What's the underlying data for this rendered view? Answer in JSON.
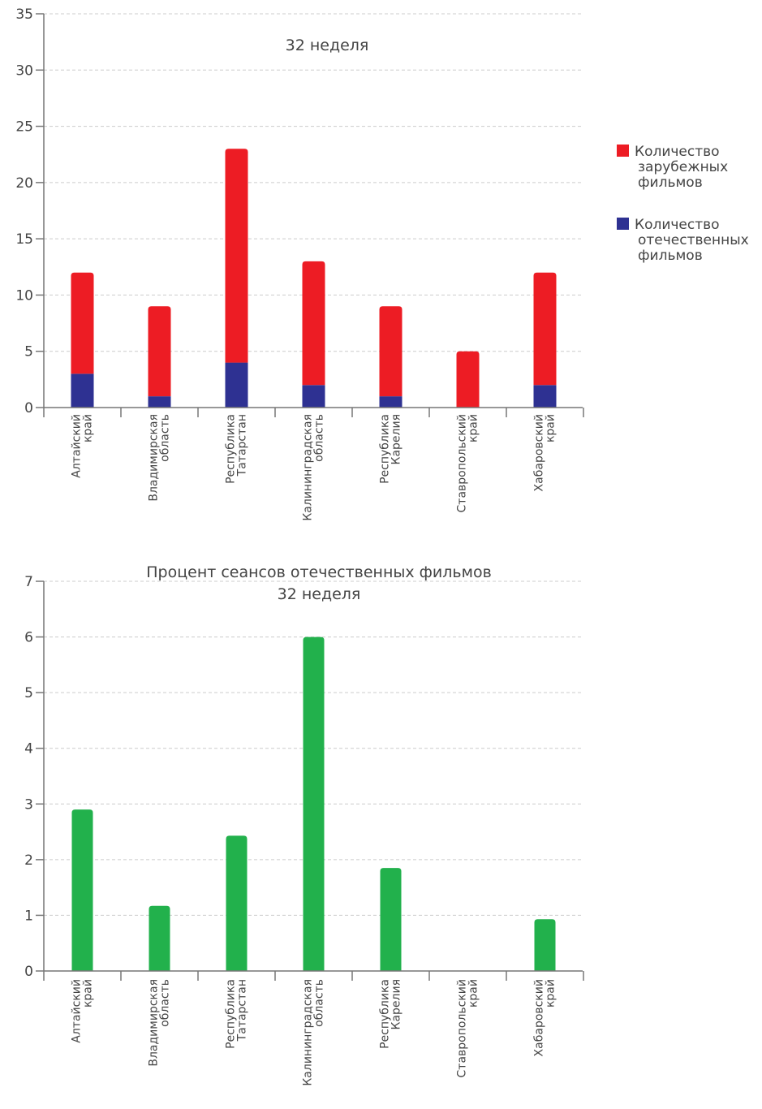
{
  "chart_data": [
    {
      "type": "bar",
      "stacked": true,
      "title": "32 неделя",
      "categories": [
        [
          "Алтайский",
          "край"
        ],
        [
          "Владимирская",
          "область"
        ],
        [
          "Республика",
          "Татарстан"
        ],
        [
          "Калининградская",
          "область"
        ],
        [
          "Республика",
          "Карелия"
        ],
        [
          "Ставропольский",
          "край"
        ],
        [
          "Хабаровский",
          "край"
        ]
      ],
      "series": [
        {
          "name": [
            "Количество",
            "отечественных",
            "фильмов"
          ],
          "color": "#2e3192",
          "values": [
            3,
            1,
            4,
            2,
            1,
            0,
            2
          ]
        },
        {
          "name": [
            "Количество",
            "зарубежных",
            "фильмов"
          ],
          "color": "#ed1c24",
          "values": [
            9,
            8,
            19,
            11,
            8,
            5,
            10
          ]
        }
      ],
      "ylim": [
        0,
        35
      ],
      "yticks": [
        "0",
        "5",
        "10",
        "15",
        "20",
        "25",
        "30",
        "35"
      ],
      "grid": true,
      "legend": "right"
    },
    {
      "type": "bar",
      "title": [
        "Процент сеансов отечественных фильмов",
        "32 неделя"
      ],
      "categories": [
        [
          "Алтайский",
          "край"
        ],
        [
          "Владимирская",
          "область"
        ],
        [
          "Республика",
          "Татарстан"
        ],
        [
          "Калининградская",
          "область"
        ],
        [
          "Республика",
          "Карелия"
        ],
        [
          "Ставропольский",
          "край"
        ],
        [
          "Хабаровский",
          "край"
        ]
      ],
      "color": "#22b14c",
      "values": [
        2.9,
        1.17,
        2.43,
        6,
        1.85,
        0,
        0.93
      ],
      "ylim": [
        0,
        7
      ],
      "yticks": [
        "0",
        "1",
        "2",
        "3",
        "4",
        "5",
        "6",
        "7"
      ],
      "grid": true
    }
  ]
}
